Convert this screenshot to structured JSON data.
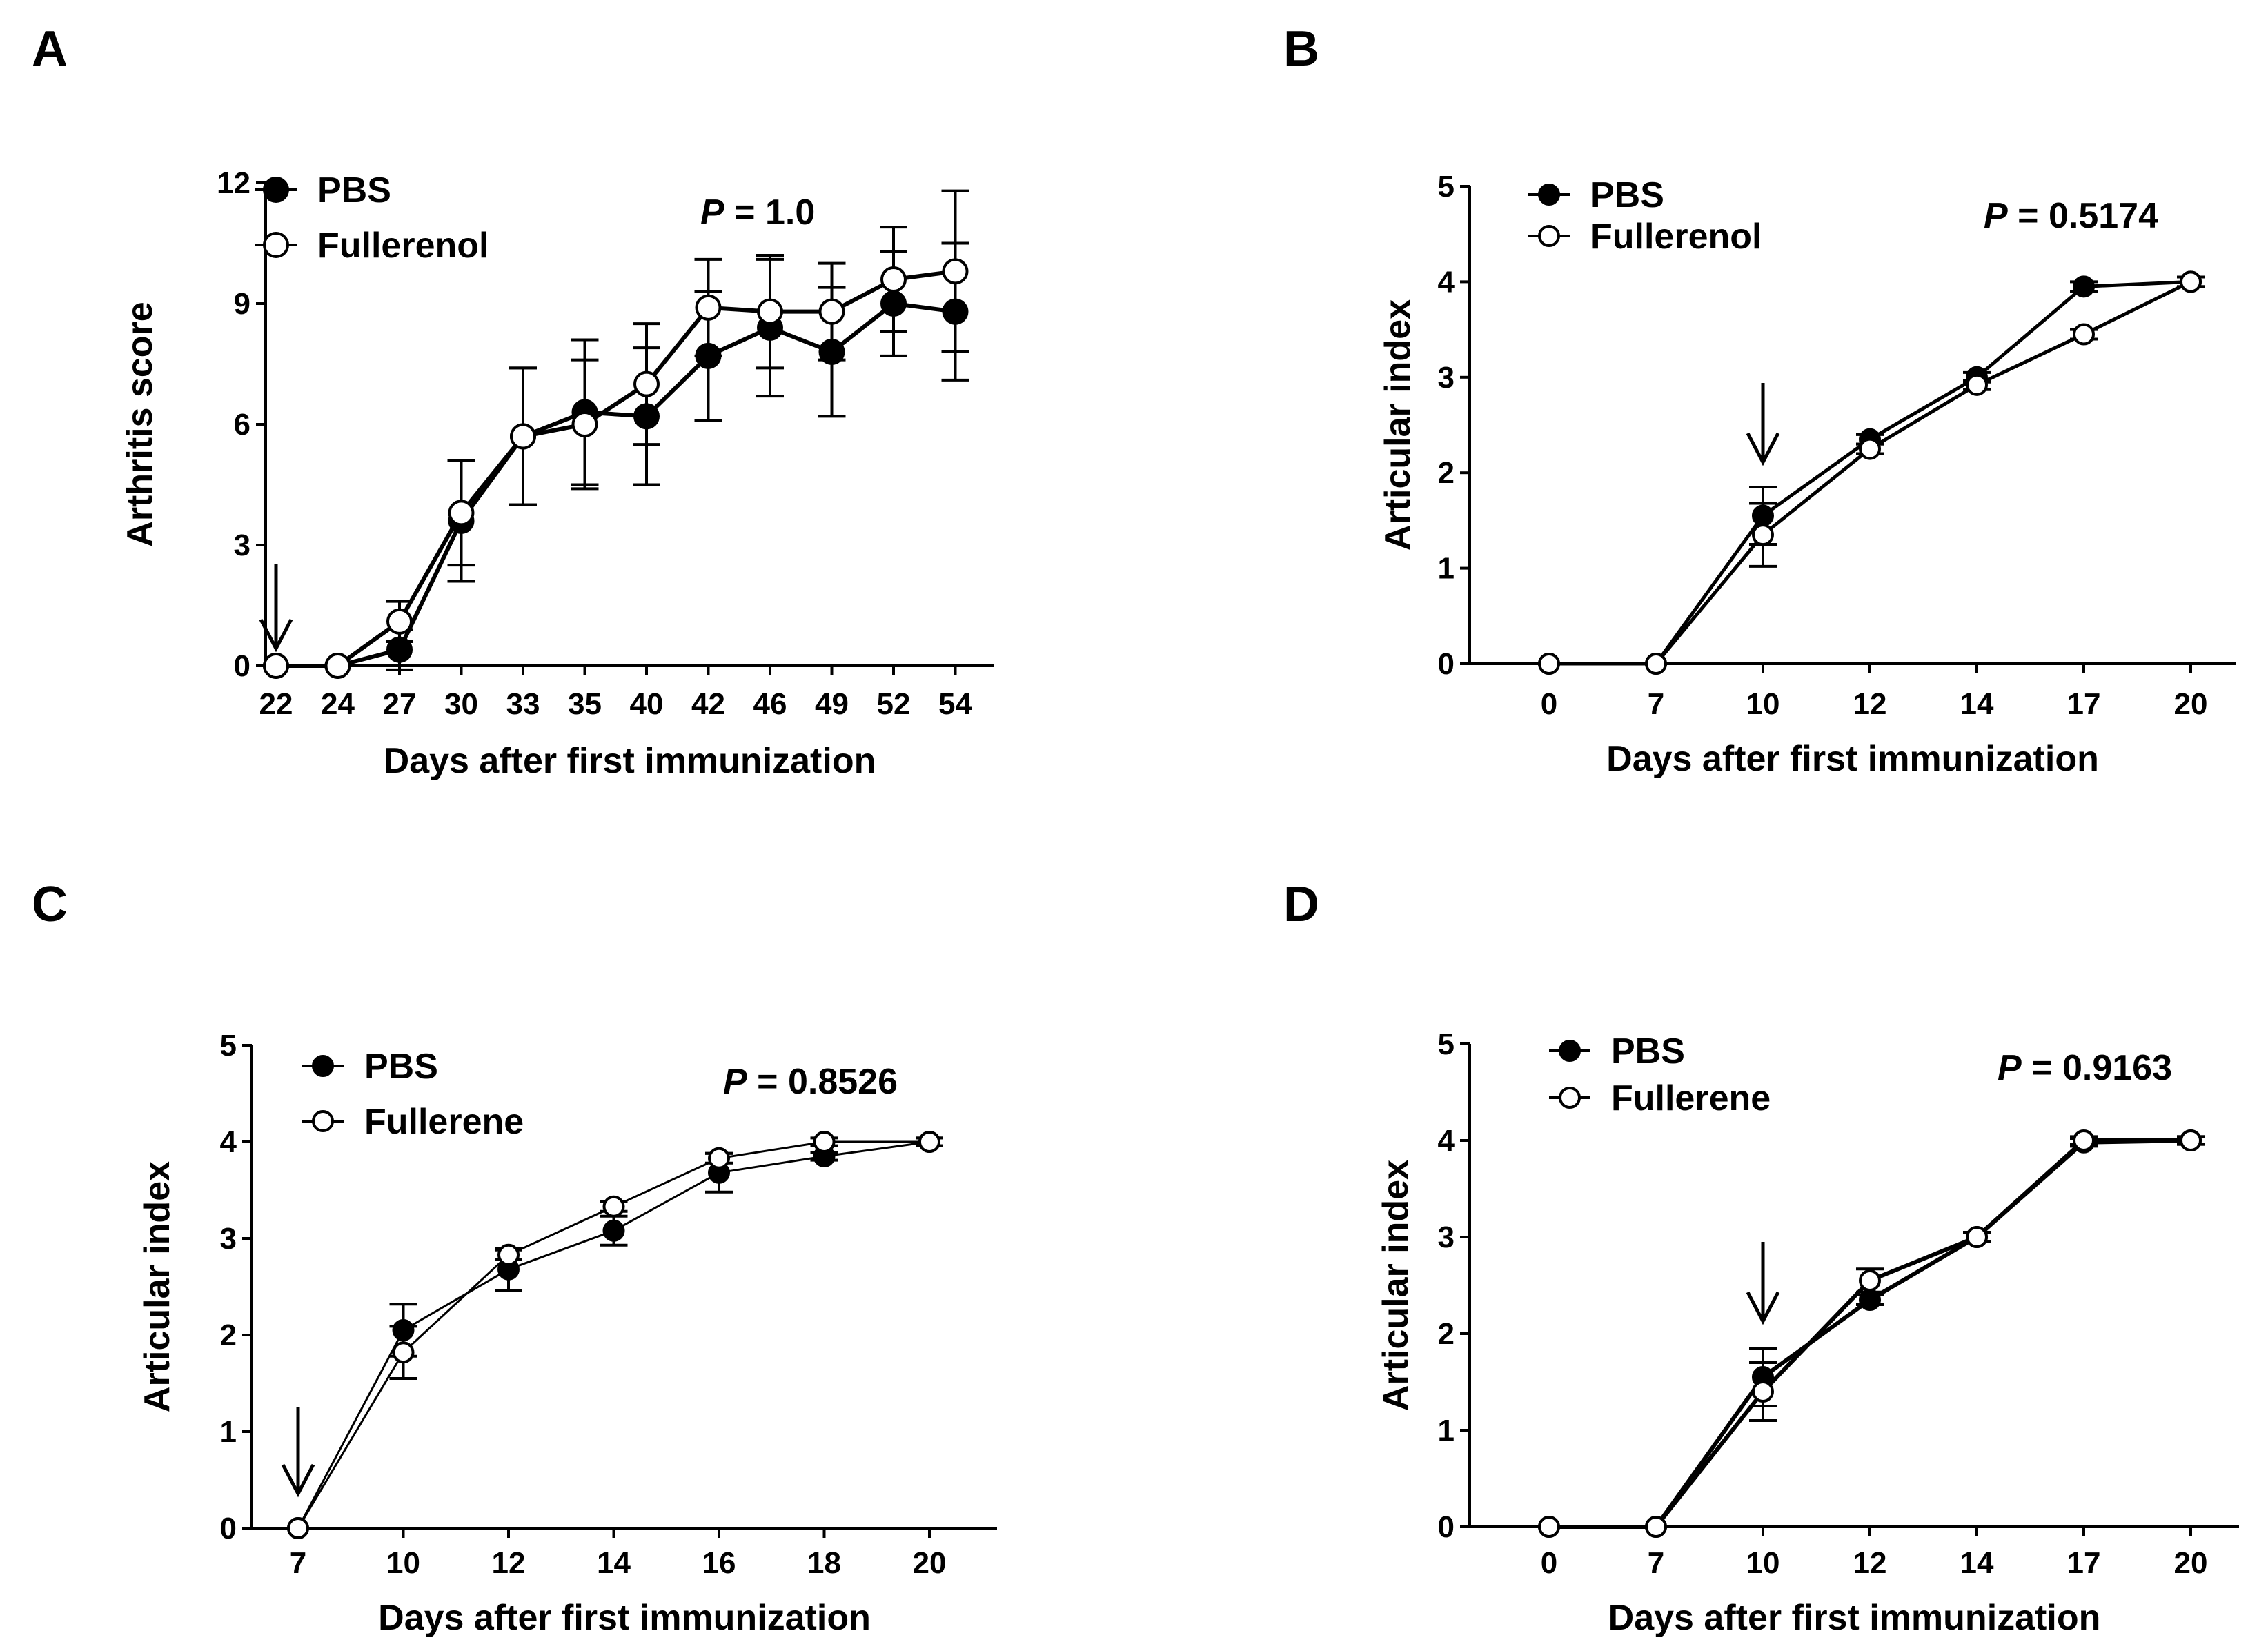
{
  "chart_data": [
    {
      "panel": "A",
      "type": "line",
      "xlabel": "Days after first immunization",
      "ylabel": "Arthritis score",
      "categories": [
        "22",
        "24",
        "27",
        "30",
        "33",
        "35",
        "40",
        "42",
        "46",
        "49",
        "52",
        "54"
      ],
      "ylim": [
        0,
        12
      ],
      "yticks": [
        "0",
        "3",
        "6",
        "9",
        "12"
      ],
      "pvalue": {
        "label": "P",
        "value": "= 1.0"
      },
      "arrow_at": "22",
      "legend_placement": "top-left",
      "series": [
        {
          "name": "PBS",
          "marker": "filled",
          "values": [
            0,
            0,
            0.4,
            3.6,
            5.7,
            6.3,
            6.2,
            7.7,
            8.4,
            7.8,
            9.0,
            8.8
          ],
          "err": [
            0,
            0,
            0.5,
            1.5,
            1.7,
            1.8,
            1.7,
            1.6,
            1.7,
            1.6,
            1.3,
            1.7
          ]
        },
        {
          "name": "Fullerenol",
          "marker": "open",
          "values": [
            0,
            0,
            1.1,
            3.8,
            5.7,
            6.0,
            7.0,
            8.9,
            8.8,
            8.8,
            9.6,
            9.8
          ],
          "err": [
            0,
            0,
            0.5,
            1.3,
            1.7,
            1.6,
            1.5,
            1.2,
            1.4,
            1.2,
            1.3,
            2.0
          ]
        }
      ]
    },
    {
      "panel": "B",
      "type": "line",
      "xlabel": "Days after first immunization",
      "ylabel": "Articular index",
      "categories": [
        "0",
        "7",
        "10",
        "12",
        "14",
        "17",
        "20"
      ],
      "ylim": [
        0,
        5
      ],
      "yticks": [
        "0",
        "1",
        "2",
        "3",
        "4",
        "5"
      ],
      "pvalue": {
        "label": "P",
        "value": "= 0.5174"
      },
      "arrow_at": "10",
      "legend_placement": "top-left",
      "series": [
        {
          "name": "PBS",
          "marker": "filled",
          "values": [
            0,
            0,
            1.55,
            2.35,
            3.0,
            3.95,
            4.0
          ],
          "err": [
            0,
            0,
            0.3,
            0.05,
            0.05,
            0.05,
            0.05
          ]
        },
        {
          "name": "Fullerenol",
          "marker": "open",
          "values": [
            0,
            0,
            1.35,
            2.25,
            2.92,
            3.45,
            4.0
          ],
          "err": [
            0,
            0,
            0.33,
            0.05,
            0.05,
            0.05,
            0.05
          ]
        }
      ]
    },
    {
      "panel": "C",
      "type": "line",
      "xlabel": "Days after first immunization",
      "ylabel": "Articular index",
      "categories": [
        "7",
        "10",
        "12",
        "14",
        "16",
        "18",
        "20"
      ],
      "ylim": [
        0,
        5
      ],
      "yticks": [
        "0",
        "1",
        "2",
        "3",
        "4",
        "5"
      ],
      "pvalue": {
        "label": "P",
        "value": "= 0.8526"
      },
      "arrow_at": "7",
      "legend_placement": "top-left",
      "series": [
        {
          "name": "PBS",
          "marker": "filled",
          "values": [
            0,
            2.05,
            2.68,
            3.08,
            3.68,
            3.85,
            4.0
          ],
          "err": [
            0,
            0.27,
            0.22,
            0.15,
            0.2,
            0.04,
            0.04
          ]
        },
        {
          "name": "Fullerene",
          "marker": "open",
          "values": [
            0,
            1.82,
            2.83,
            3.33,
            3.83,
            4.0,
            4.0
          ],
          "err": [
            0,
            0.27,
            0.05,
            0.05,
            0.05,
            0.04,
            0.04
          ]
        }
      ]
    },
    {
      "panel": "D",
      "type": "line",
      "xlabel": "Days after first immunization",
      "ylabel": "Articular index",
      "categories": [
        "0",
        "7",
        "10",
        "12",
        "14",
        "17",
        "20"
      ],
      "ylim": [
        0,
        5
      ],
      "yticks": [
        "0",
        "1",
        "2",
        "3",
        "4",
        "5"
      ],
      "pvalue": {
        "label": "P",
        "value": "= 0.9163"
      },
      "arrow_at": "10",
      "legend_placement": "top-left",
      "series": [
        {
          "name": "PBS",
          "marker": "filled",
          "values": [
            0,
            0,
            1.55,
            2.35,
            3.0,
            3.98,
            4.0
          ],
          "err": [
            0,
            0,
            0.3,
            0.05,
            0.05,
            0.04,
            0.04
          ]
        },
        {
          "name": "Fullerene",
          "marker": "open",
          "values": [
            0,
            0,
            1.4,
            2.55,
            3.0,
            4.0,
            4.0
          ],
          "err": [
            0,
            0,
            0.3,
            0.12,
            0.05,
            0.04,
            0.04
          ]
        }
      ]
    }
  ]
}
